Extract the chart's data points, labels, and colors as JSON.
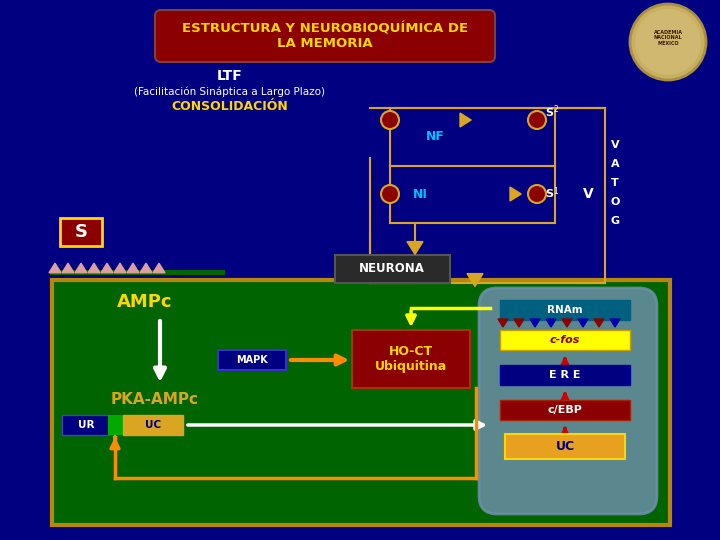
{
  "bg_color": "#000080",
  "title_box_color": "#8B0000",
  "title_text_color": "#FFD700",
  "green_box_color": "#006400",
  "green_box_edge": "#B8860B",
  "s_box_color": "#8B0000",
  "mapk_box_color": "#000080",
  "hoct_box_color": "#8B0000",
  "pka_box_color": "#DAA520",
  "ur_box_color": "#000080",
  "uc2_box_color": "#DAA520",
  "rnm_box_color": "#008080",
  "cfos_box_color": "#FFFF00",
  "ere_box_color": "#000080",
  "cebp_box_color": "#8B0000",
  "uc_box_color": "#E8A020",
  "circuit_color": "#DAA520",
  "nf_color": "#00BFFF",
  "ni_color": "#00BFFF",
  "ampc_color": "#FFD700",
  "pka_text_color": "#000080",
  "vatog": [
    "V",
    "A",
    "T",
    "O",
    "G"
  ]
}
